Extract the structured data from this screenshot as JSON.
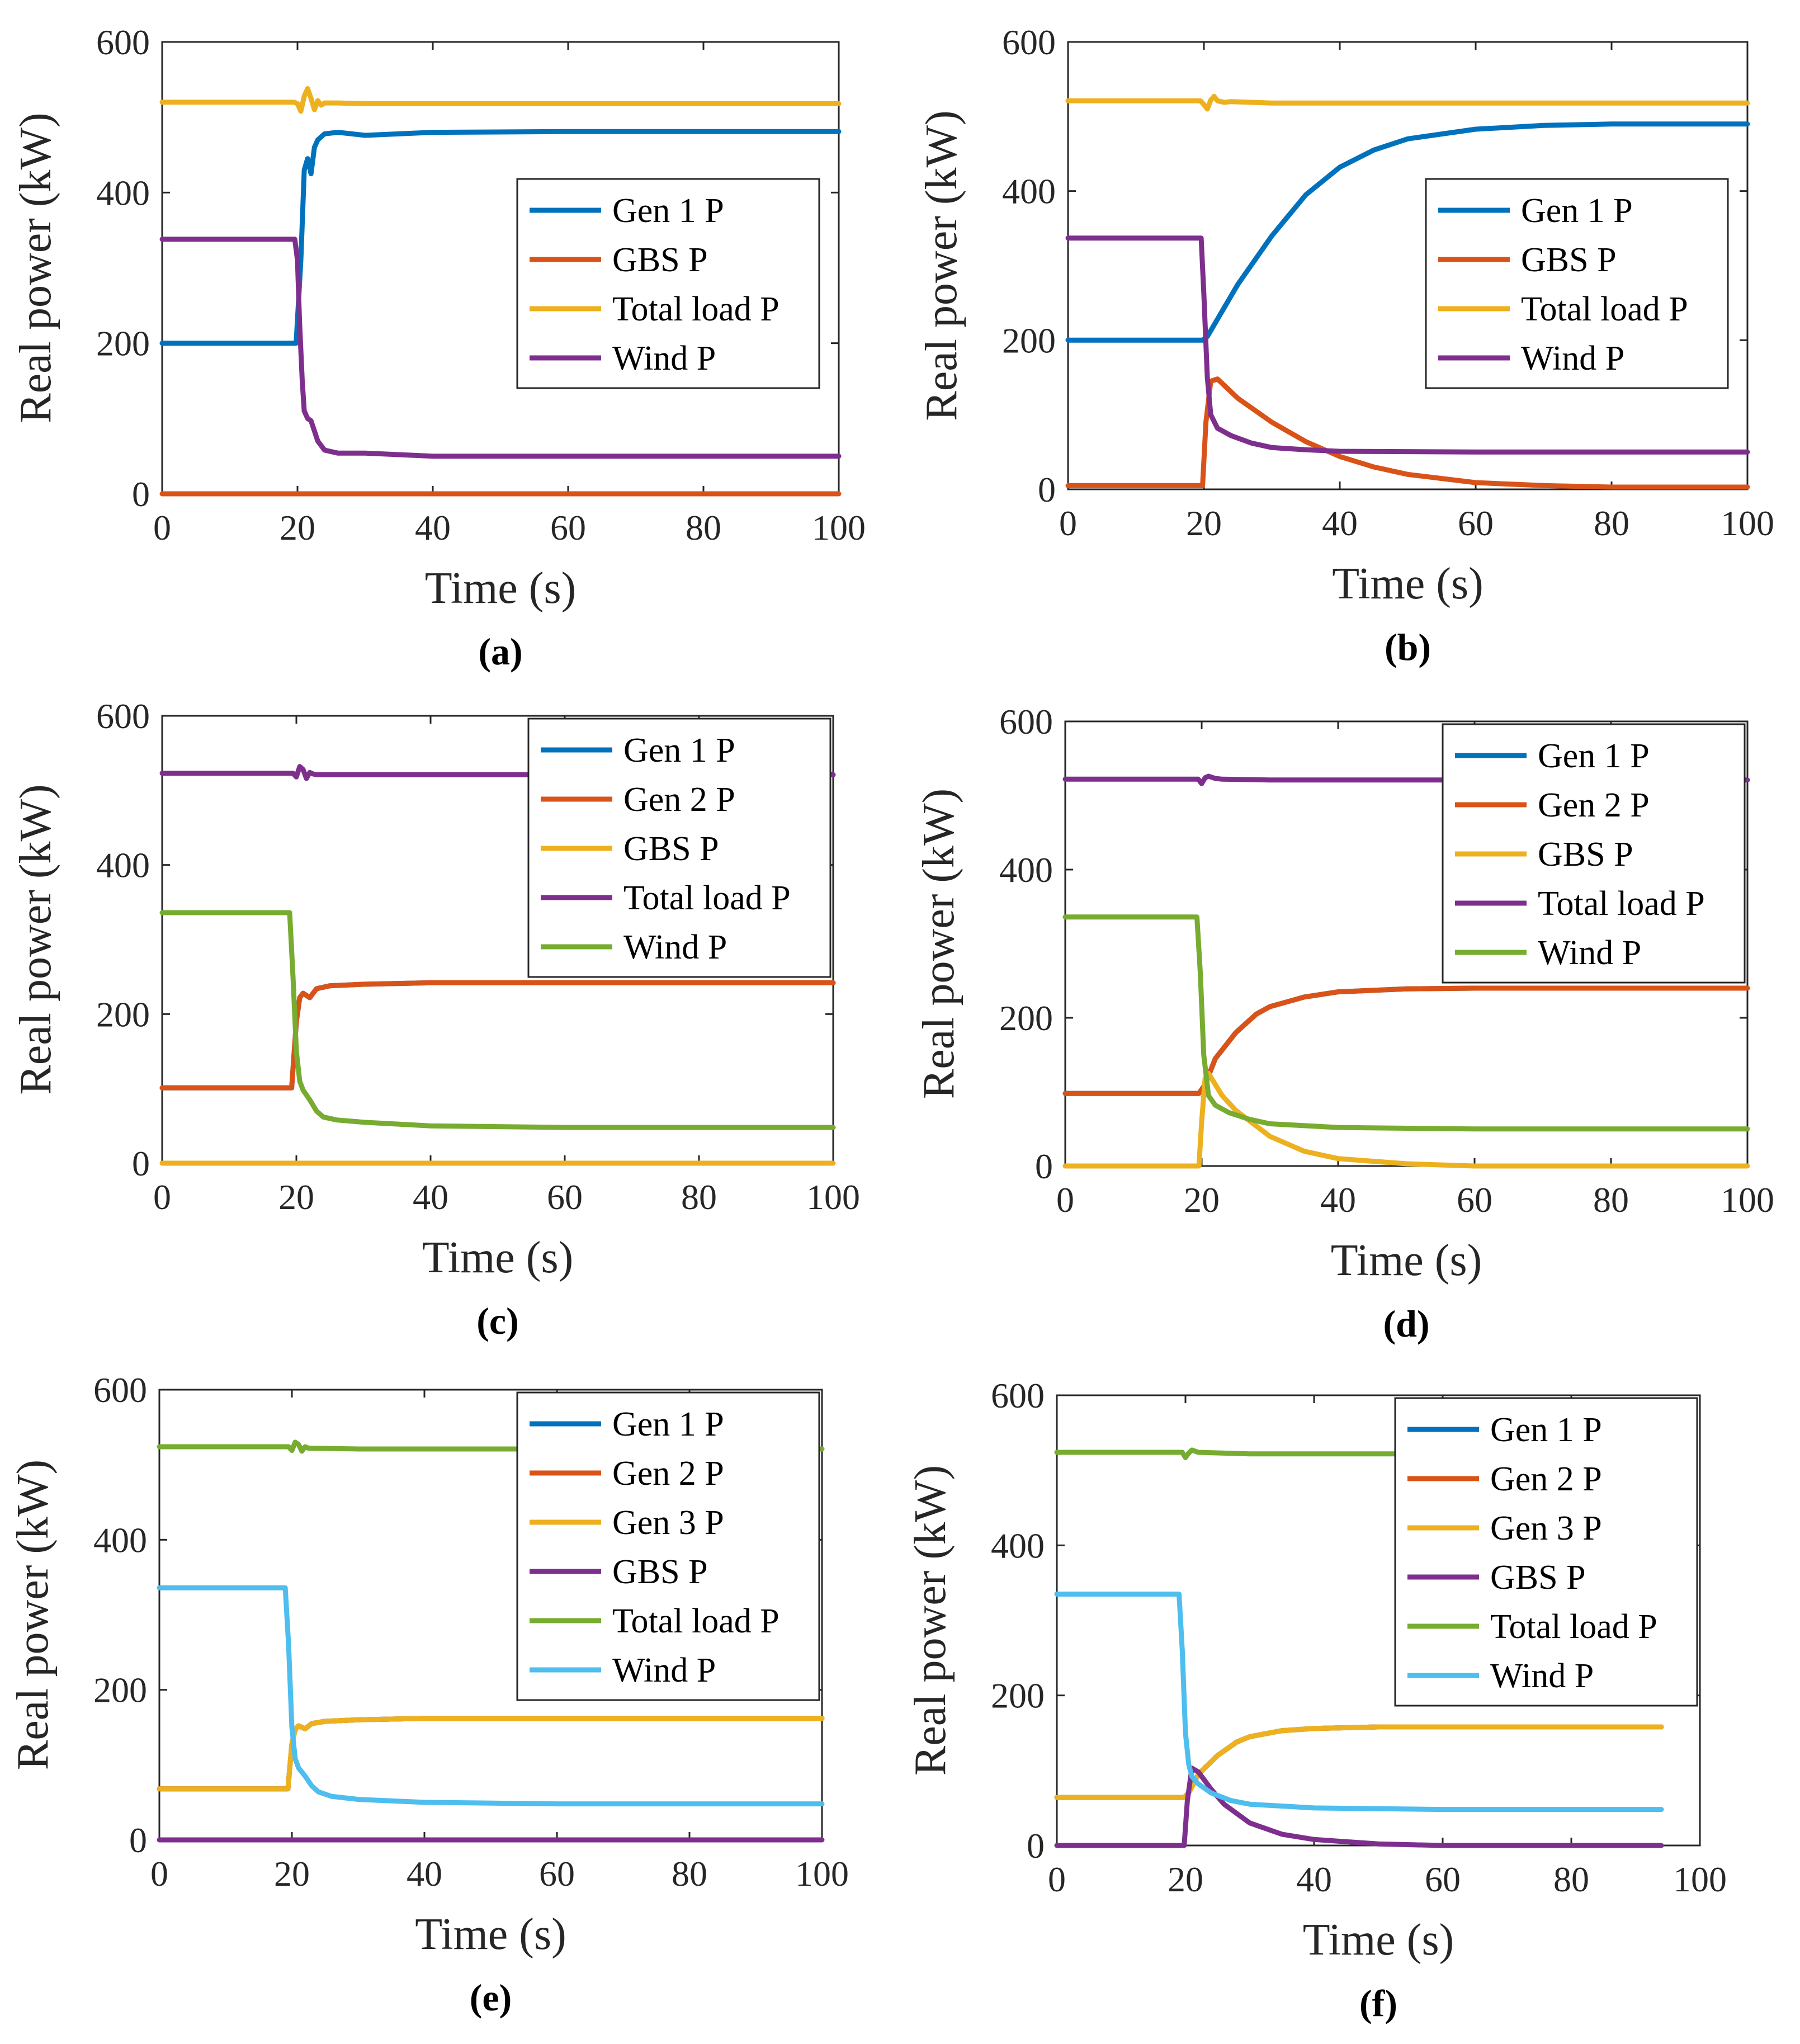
{
  "chart_data": [
    {
      "type": "line",
      "title": "",
      "caption": "(a)",
      "xlabel": "Time (s)",
      "ylabel": "Real power (kW)",
      "xlim": [
        0,
        100
      ],
      "ylim": [
        0,
        600
      ],
      "xticks": [
        "0",
        "20",
        "40",
        "60",
        "80",
        "100"
      ],
      "yticks": [
        "0",
        "200",
        "400",
        "600"
      ],
      "legend_location": "right",
      "series": [
        {
          "name": "Gen 1 P",
          "color": "#0072BD",
          "x": [
            0,
            19.8,
            20.5,
            21,
            21.5,
            22,
            22.5,
            23,
            24,
            26,
            30,
            40,
            60,
            100
          ],
          "y": [
            200,
            200,
            310,
            430,
            445,
            425,
            460,
            470,
            478,
            480,
            476,
            480,
            481,
            481
          ]
        },
        {
          "name": "GBS P",
          "color": "#D95319",
          "x": [
            0,
            100
          ],
          "y": [
            0,
            0
          ]
        },
        {
          "name": "Total load P",
          "color": "#EDB120",
          "x": [
            0,
            19.5,
            20,
            20.5,
            21,
            21.5,
            22,
            22.5,
            23,
            23.5,
            24,
            26,
            30,
            100
          ],
          "y": [
            520,
            520,
            518,
            508,
            528,
            538,
            525,
            510,
            522,
            516,
            519,
            519,
            518,
            518
          ]
        },
        {
          "name": "Wind P",
          "color": "#7E2F8E",
          "x": [
            0,
            19.6,
            20,
            20.3,
            20.7,
            21,
            21.5,
            22,
            23,
            24,
            26,
            30,
            40,
            60,
            100
          ],
          "y": [
            338,
            338,
            310,
            230,
            150,
            110,
            100,
            97,
            70,
            58,
            54,
            54,
            50,
            50,
            50
          ]
        }
      ]
    },
    {
      "type": "line",
      "title": "",
      "caption": "(b)",
      "xlabel": "Time (s)",
      "ylabel": "Real power (kW)",
      "xlim": [
        0,
        100
      ],
      "ylim": [
        0,
        600
      ],
      "xticks": [
        "0",
        "20",
        "40",
        "60",
        "80",
        "100"
      ],
      "yticks": [
        "0",
        "200",
        "400",
        "600"
      ],
      "legend_location": "right",
      "series": [
        {
          "name": "Gen 1 P",
          "color": "#0072BD",
          "x": [
            0,
            19.8,
            20.5,
            25,
            30,
            35,
            40,
            45,
            50,
            60,
            70,
            80,
            100
          ],
          "y": [
            200,
            200,
            205,
            275,
            340,
            395,
            432,
            455,
            470,
            483,
            488,
            490,
            490
          ]
        },
        {
          "name": "GBS P",
          "color": "#D95319",
          "x": [
            0,
            19.8,
            20.3,
            21,
            22,
            25,
            30,
            35,
            40,
            45,
            50,
            60,
            70,
            80,
            100
          ],
          "y": [
            5,
            5,
            90,
            145,
            148,
            122,
            90,
            64,
            44,
            30,
            20,
            9,
            5,
            3,
            3
          ]
        },
        {
          "name": "Total load P",
          "color": "#EDB120",
          "x": [
            0,
            19.5,
            20,
            20.5,
            21,
            21.5,
            22,
            23,
            24,
            30,
            100
          ],
          "y": [
            521,
            521,
            516,
            510,
            522,
            527,
            521,
            519,
            520,
            518,
            518
          ]
        },
        {
          "name": "Wind P",
          "color": "#7E2F8E",
          "x": [
            0,
            19.6,
            20,
            20.5,
            21,
            22,
            24,
            27,
            30,
            35,
            40,
            60,
            100
          ],
          "y": [
            337,
            337,
            260,
            150,
            100,
            82,
            72,
            62,
            56,
            53,
            51,
            50,
            50
          ]
        }
      ]
    },
    {
      "type": "line",
      "title": "",
      "caption": "(c)",
      "xlabel": "Time (s)",
      "ylabel": "Real power (kW)",
      "xlim": [
        0,
        100
      ],
      "ylim": [
        0,
        600
      ],
      "xticks": [
        "0",
        "20",
        "40",
        "60",
        "80",
        "100"
      ],
      "yticks": [
        "0",
        "200",
        "400",
        "600"
      ],
      "legend_location": "top-right",
      "series": [
        {
          "name": "Gen 1 P",
          "color": "#0072BD",
          "x": [
            0,
            19.3,
            20,
            20.5,
            21,
            22,
            23,
            25,
            30,
            40,
            100
          ],
          "y": [
            101,
            101,
            190,
            222,
            228,
            222,
            234,
            238,
            240,
            242,
            242
          ]
        },
        {
          "name": "Gen 2 P",
          "color": "#D95319",
          "x": [
            0,
            19.3,
            20,
            20.5,
            21,
            22,
            23,
            25,
            30,
            40,
            100
          ],
          "y": [
            101,
            101,
            190,
            222,
            228,
            222,
            234,
            238,
            240,
            242,
            242
          ]
        },
        {
          "name": "GBS P",
          "color": "#EDB120",
          "x": [
            0,
            100
          ],
          "y": [
            0,
            0
          ]
        },
        {
          "name": "Total load P",
          "color": "#7E2F8E",
          "x": [
            0,
            19.5,
            20,
            20.5,
            21,
            21.5,
            22,
            22.5,
            23,
            24,
            30,
            100
          ],
          "y": [
            523,
            523,
            518,
            532,
            528,
            516,
            524,
            522,
            521,
            521,
            521,
            521
          ]
        },
        {
          "name": "Wind P",
          "color": "#77AC30",
          "x": [
            0,
            19,
            19.5,
            20,
            20.5,
            21,
            22,
            23,
            24,
            26,
            30,
            40,
            60,
            100
          ],
          "y": [
            336,
            336,
            250,
            150,
            110,
            98,
            85,
            70,
            62,
            58,
            55,
            50,
            48,
            48
          ]
        }
      ]
    },
    {
      "type": "line",
      "title": "",
      "caption": "(d)",
      "xlabel": "Time (s)",
      "ylabel": "Real power (kW)",
      "xlim": [
        0,
        100
      ],
      "ylim": [
        0,
        600
      ],
      "xticks": [
        "0",
        "20",
        "40",
        "60",
        "80",
        "100"
      ],
      "yticks": [
        "0",
        "200",
        "400",
        "600"
      ],
      "legend_location": "top-right",
      "series": [
        {
          "name": "Gen 1 P",
          "color": "#0072BD",
          "x": [
            0,
            19.6,
            20.5,
            22,
            25,
            28,
            30,
            35,
            40,
            50,
            60,
            100
          ],
          "y": [
            98,
            98,
            110,
            145,
            180,
            205,
            215,
            228,
            235,
            239,
            240,
            240
          ]
        },
        {
          "name": "Gen 2 P",
          "color": "#D95319",
          "x": [
            0,
            19.6,
            20.5,
            22,
            25,
            28,
            30,
            35,
            40,
            50,
            60,
            100
          ],
          "y": [
            98,
            98,
            110,
            145,
            180,
            205,
            215,
            228,
            235,
            239,
            240,
            240
          ]
        },
        {
          "name": "GBS P",
          "color": "#EDB120",
          "x": [
            0,
            19.6,
            20,
            20.5,
            21,
            23,
            25,
            30,
            35,
            40,
            50,
            60,
            100
          ],
          "y": [
            0,
            0,
            60,
            118,
            125,
            95,
            75,
            40,
            20,
            10,
            3,
            0,
            0
          ]
        },
        {
          "name": "Total load P",
          "color": "#7E2F8E",
          "x": [
            0,
            19.5,
            20,
            20.5,
            21,
            22,
            23,
            30,
            100
          ],
          "y": [
            522,
            522,
            516,
            524,
            526,
            523,
            522,
            521,
            521
          ]
        },
        {
          "name": "Wind P",
          "color": "#77AC30",
          "x": [
            0,
            19.3,
            19.8,
            20.3,
            21,
            22,
            24,
            27,
            30,
            40,
            60,
            100
          ],
          "y": [
            336,
            336,
            260,
            150,
            95,
            82,
            72,
            63,
            57,
            52,
            50,
            50
          ]
        }
      ]
    },
    {
      "type": "line",
      "title": "",
      "caption": "(e)",
      "xlabel": "Time (s)",
      "ylabel": "Real power (kW)",
      "xlim": [
        0,
        100
      ],
      "ylim": [
        0,
        600
      ],
      "xticks": [
        "0",
        "20",
        "40",
        "60",
        "80",
        "100"
      ],
      "yticks": [
        "0",
        "200",
        "400",
        "600"
      ],
      "legend_location": "top-right",
      "series": [
        {
          "name": "Gen 1 P",
          "color": "#0072BD",
          "x": [
            0,
            19.4,
            20,
            20.5,
            21,
            22,
            23,
            25,
            30,
            40,
            100
          ],
          "y": [
            68,
            68,
            128,
            147,
            152,
            148,
            155,
            158,
            160,
            162,
            162
          ]
        },
        {
          "name": "Gen 2 P",
          "color": "#D95319",
          "x": [
            0,
            19.4,
            20,
            20.5,
            21,
            22,
            23,
            25,
            30,
            40,
            100
          ],
          "y": [
            68,
            68,
            128,
            147,
            152,
            148,
            155,
            158,
            160,
            162,
            162
          ]
        },
        {
          "name": "Gen 3 P",
          "color": "#EDB120",
          "x": [
            0,
            19.4,
            20,
            20.5,
            21,
            22,
            23,
            25,
            30,
            40,
            100
          ],
          "y": [
            68,
            68,
            128,
            147,
            152,
            148,
            155,
            158,
            160,
            162,
            162
          ]
        },
        {
          "name": "GBS P",
          "color": "#7E2F8E",
          "x": [
            0,
            100
          ],
          "y": [
            0,
            0
          ]
        },
        {
          "name": "Total load P",
          "color": "#77AC30",
          "x": [
            0,
            19.5,
            20,
            20.5,
            21,
            21.5,
            22,
            22.5,
            23,
            30,
            100
          ],
          "y": [
            524,
            524,
            519,
            530,
            527,
            518,
            524,
            522,
            522,
            521,
            521
          ]
        },
        {
          "name": "Wind P",
          "color": "#4DBEEE",
          "x": [
            0,
            19,
            19.5,
            20,
            20.5,
            21,
            22,
            23,
            24,
            26,
            30,
            40,
            60,
            100
          ],
          "y": [
            336,
            336,
            260,
            150,
            108,
            96,
            85,
            72,
            64,
            58,
            54,
            50,
            48,
            48
          ]
        }
      ]
    },
    {
      "type": "line",
      "title": "",
      "caption": "(f)",
      "xlabel": "Time (s)",
      "ylabel": "Real power (kW)",
      "xlim": [
        0,
        100
      ],
      "ylim": [
        0,
        600
      ],
      "xticks": [
        "0",
        "20",
        "40",
        "60",
        "80",
        "100"
      ],
      "yticks": [
        "0",
        "200",
        "400",
        "600"
      ],
      "legend_location": "top-right",
      "series": [
        {
          "name": "Gen 1 P",
          "color": "#0072BD",
          "x": [
            0,
            19.8,
            20.5,
            22,
            25,
            28,
            30,
            35,
            40,
            50,
            60,
            94
          ],
          "y": [
            64,
            64,
            70,
            95,
            120,
            138,
            145,
            153,
            156,
            158,
            158,
            158
          ]
        },
        {
          "name": "Gen 2 P",
          "color": "#D95319",
          "x": [
            0,
            19.8,
            20.5,
            22,
            25,
            28,
            30,
            35,
            40,
            50,
            60,
            94
          ],
          "y": [
            64,
            64,
            70,
            95,
            120,
            138,
            145,
            153,
            156,
            158,
            158,
            158
          ]
        },
        {
          "name": "Gen 3 P",
          "color": "#EDB120",
          "x": [
            0,
            19.8,
            20.5,
            22,
            25,
            28,
            30,
            35,
            40,
            50,
            60,
            94
          ],
          "y": [
            64,
            64,
            70,
            95,
            120,
            138,
            145,
            153,
            156,
            158,
            158,
            158
          ]
        },
        {
          "name": "GBS P",
          "color": "#7E2F8E",
          "x": [
            0,
            19.8,
            20.3,
            21,
            22,
            24,
            26,
            30,
            35,
            40,
            50,
            60,
            94
          ],
          "y": [
            0,
            0,
            60,
            103,
            98,
            75,
            55,
            30,
            15,
            8,
            2,
            0,
            0
          ]
        },
        {
          "name": "Total load P",
          "color": "#77AC30",
          "x": [
            0,
            19.5,
            20,
            20.5,
            21,
            22,
            30,
            94
          ],
          "y": [
            524,
            524,
            517,
            523,
            527,
            524,
            522,
            522
          ]
        },
        {
          "name": "Wind P",
          "color": "#4DBEEE",
          "x": [
            0,
            19,
            19.5,
            20,
            20.5,
            21,
            22,
            24,
            27,
            30,
            40,
            60,
            94
          ],
          "y": [
            335,
            335,
            260,
            150,
            108,
            92,
            82,
            70,
            60,
            55,
            50,
            48,
            48
          ]
        }
      ]
    }
  ]
}
